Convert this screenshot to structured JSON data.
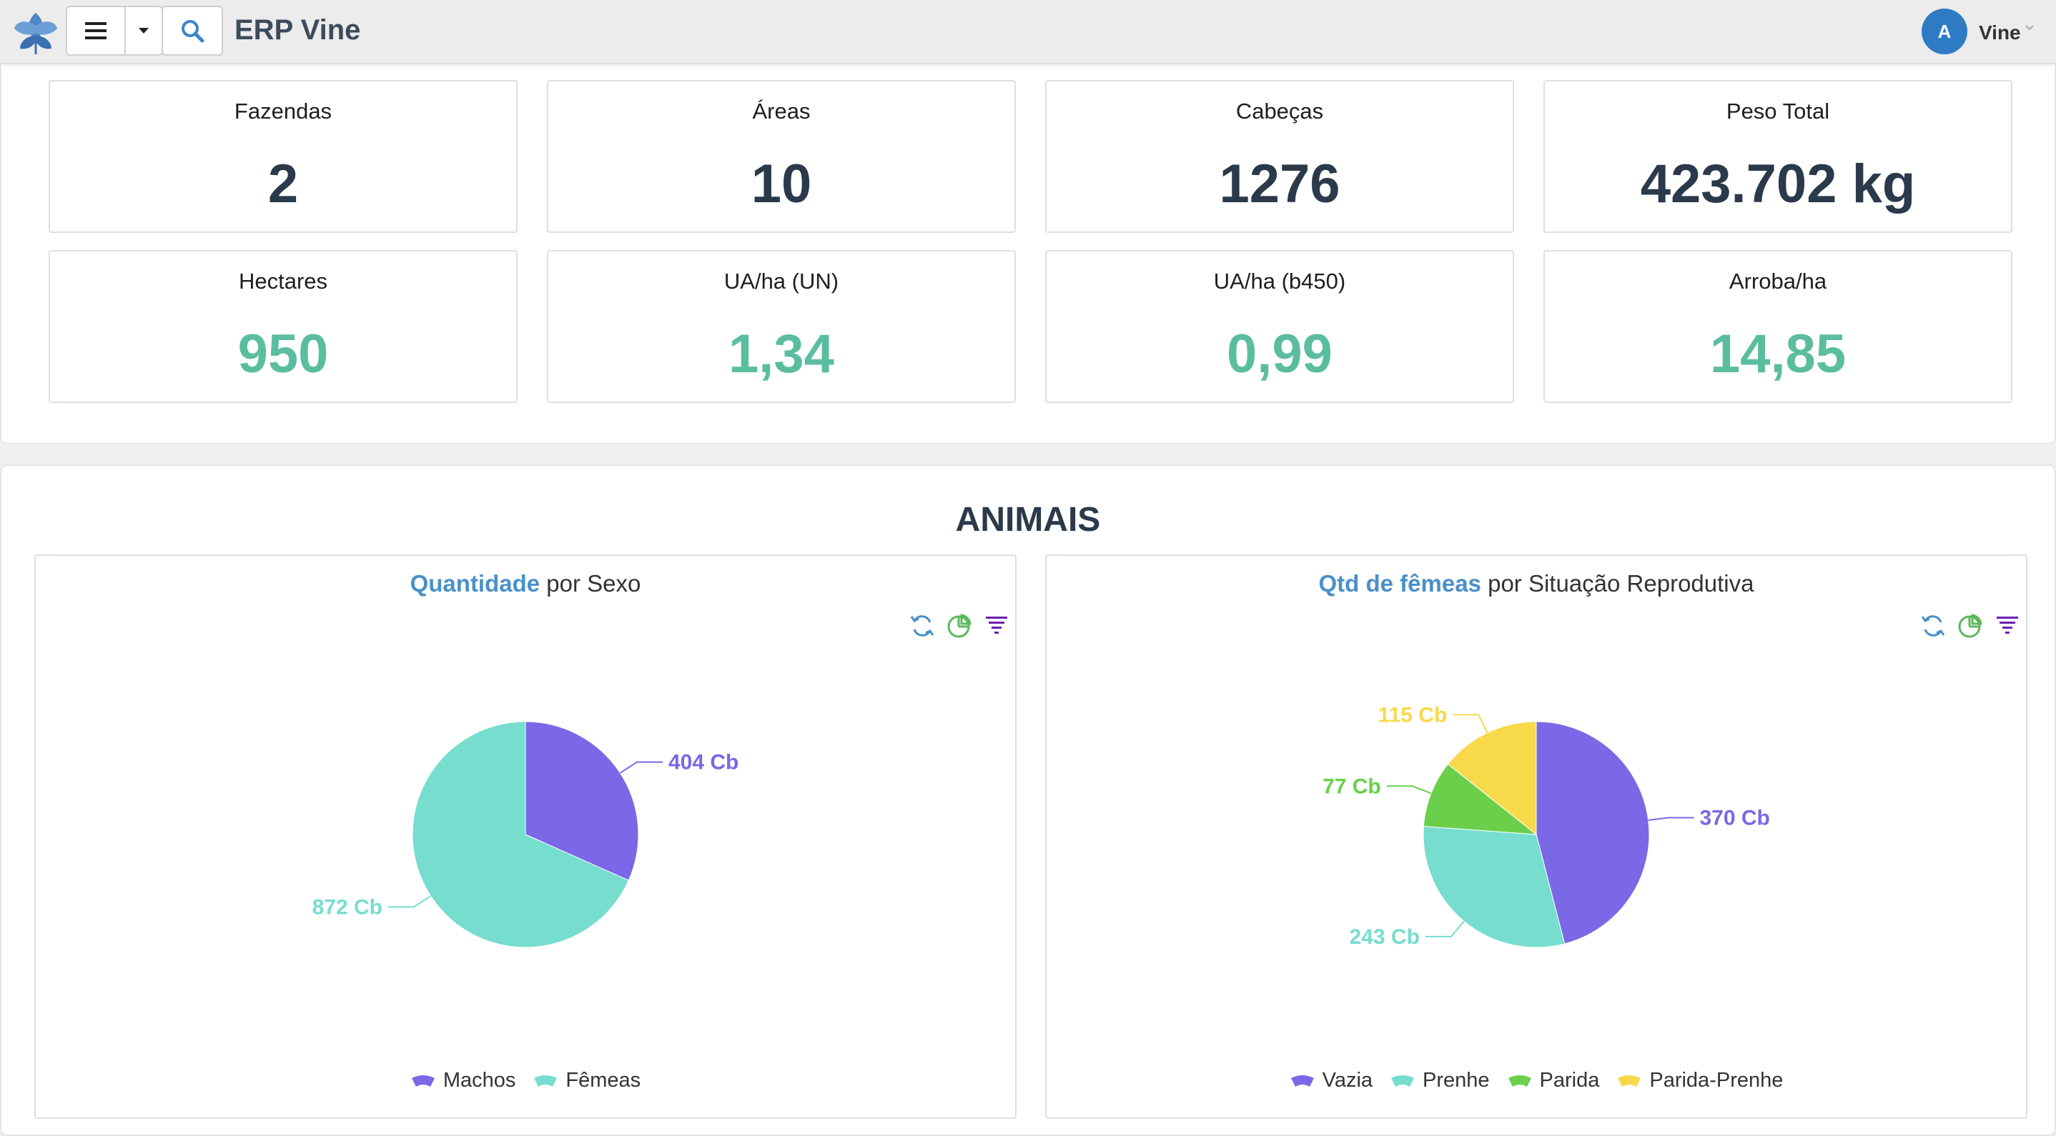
{
  "header": {
    "title": "ERP Vine",
    "user_initial": "A",
    "user_name": "Vine"
  },
  "stats": [
    {
      "label": "Fazendas",
      "value": "2"
    },
    {
      "label": "Áreas",
      "value": "10"
    },
    {
      "label": "Cabeças",
      "value": "1276"
    },
    {
      "label": "Peso Total",
      "value": "423.702 kg"
    },
    {
      "label": "Hectares",
      "value": "950"
    },
    {
      "label": "UA/ha (UN)",
      "value": "1,34"
    },
    {
      "label": "UA/ha (b450)",
      "value": "0,99"
    },
    {
      "label": "Arroba/ha",
      "value": "14,85"
    }
  ],
  "section": {
    "title": "ANIMAIS"
  },
  "charts": {
    "sexo": {
      "title_highlight": "Quantidade",
      "title_rest": " por Sexo"
    },
    "repro": {
      "title_highlight": "Qtd de fêmeas",
      "title_rest": " por Situação Reprodutiva"
    }
  },
  "colors": {
    "purple": "#7b68e6",
    "teal": "#76ddcf",
    "green": "#6bcf4c",
    "yellow": "#f7d94a",
    "accent": "#4a90c8",
    "value_green": "#5bbd9f"
  },
  "icons": [
    "leaf-logo-icon",
    "hamburger-menu-icon",
    "caret-down-icon",
    "search-icon",
    "refresh-icon",
    "pie-chart-icon",
    "filter-icon"
  ],
  "chart_data": [
    {
      "type": "pie",
      "title": "Quantidade por Sexo",
      "categories": [
        "Machos",
        "Fêmeas"
      ],
      "values": [
        404,
        872
      ],
      "data_labels": [
        "404 Cb",
        "872 Cb"
      ],
      "legend": "bottom"
    },
    {
      "type": "pie",
      "title": "Qtd de fêmeas por Situação Reprodutiva",
      "categories": [
        "Vazia",
        "Prenhe",
        "Parida",
        "Parida-Prenhe"
      ],
      "values": [
        370,
        243,
        77,
        115
      ],
      "data_labels": [
        "370 Cb",
        "243 Cb",
        "77 Cb",
        "115 Cb"
      ],
      "legend": "bottom"
    }
  ]
}
